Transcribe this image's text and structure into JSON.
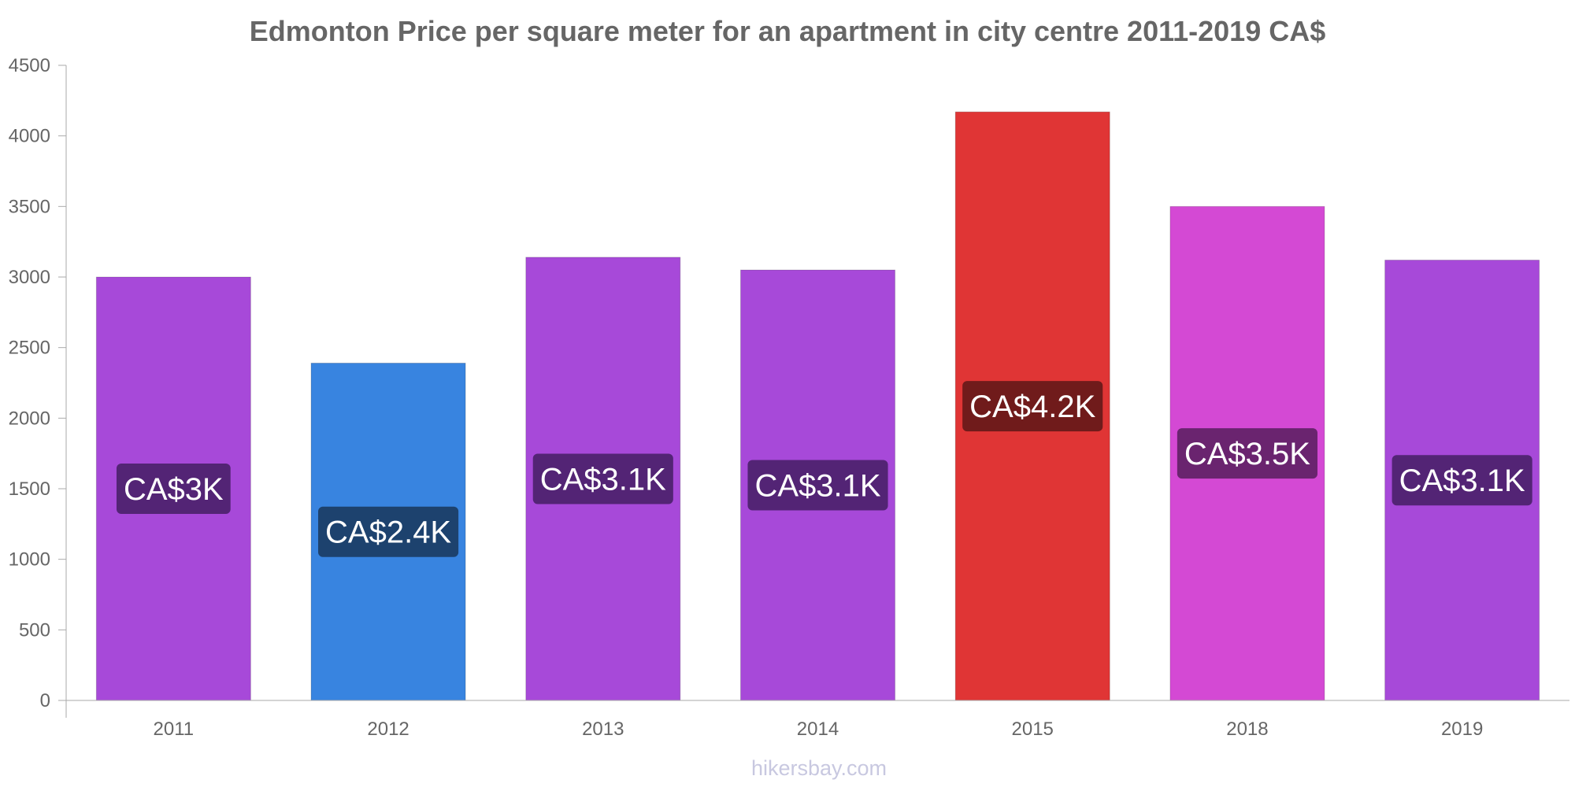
{
  "chart_data": {
    "type": "bar",
    "title": "Edmonton Price per square meter for an apartment in city centre 2011-2019 CA$",
    "xlabel": "",
    "ylabel": "",
    "ylim": [
      0,
      4500
    ],
    "yticks": [
      0,
      500,
      1000,
      1500,
      2000,
      2500,
      3000,
      3500,
      4000,
      4500
    ],
    "ytick_labels": [
      "0",
      "500",
      "1000",
      "1500",
      "2000",
      "2500",
      "3000",
      "3500",
      "4000",
      "4500"
    ],
    "categories": [
      "2011",
      "2012",
      "2013",
      "2014",
      "2015",
      "2018",
      "2019"
    ],
    "values": [
      3000,
      2390,
      3140,
      3050,
      4170,
      3500,
      3120
    ],
    "data_labels": [
      "CA$3K",
      "CA$2.4K",
      "CA$3.1K",
      "CA$3.1K",
      "CA$4.2K",
      "CA$3.5K",
      "CA$3.1K"
    ],
    "bar_colors": [
      "#a749d9",
      "#3884e0",
      "#a749d9",
      "#a749d9",
      "#e03535",
      "#d449d4",
      "#a749d9"
    ],
    "label_bg_colors": [
      "#532475",
      "#1d426e",
      "#532475",
      "#532475",
      "#701b1b",
      "#6a246f",
      "#532475"
    ],
    "grid": false,
    "legend": "none"
  },
  "footer": {
    "source": "hikersbay.com"
  },
  "colors": {
    "axis": "#aaaaaa",
    "text": "#666666"
  }
}
